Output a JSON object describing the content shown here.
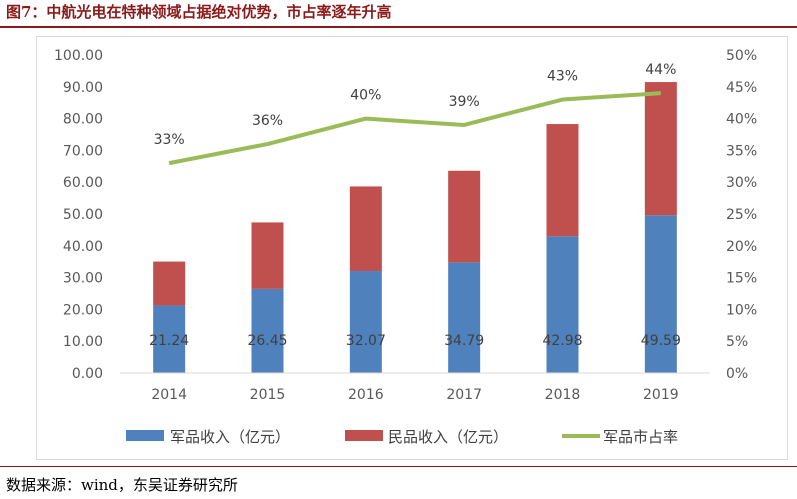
{
  "header": {
    "title": "图7：中航光电在特种领域占据绝对优势，市占率逐年升高"
  },
  "footer": {
    "source": "数据来源：wind，东吴证券研究所"
  },
  "chart_data": {
    "type": "bar",
    "stacked": true,
    "categories": [
      "2014",
      "2015",
      "2016",
      "2017",
      "2018",
      "2019"
    ],
    "series": [
      {
        "name": "军品收入（亿元）",
        "type": "bar",
        "axis": "left",
        "color": "#4F81BD",
        "values": [
          21.24,
          26.45,
          32.07,
          34.79,
          42.98,
          49.59
        ],
        "labels": [
          "21.24",
          "26.45",
          "32.07",
          "34.79",
          "42.98",
          "49.59"
        ]
      },
      {
        "name": "民品收入（亿元）",
        "type": "bar",
        "axis": "left",
        "color": "#C0504D",
        "values": [
          13.8,
          20.9,
          26.6,
          28.8,
          35.3,
          41.9
        ]
      },
      {
        "name": "军品市占率",
        "type": "line",
        "axis": "right",
        "color": "#9BBB59",
        "values": [
          33,
          36,
          40,
          39,
          43,
          44
        ],
        "labels": [
          "33%",
          "36%",
          "40%",
          "39%",
          "43%",
          "44%"
        ]
      }
    ],
    "y_left": {
      "min": 0,
      "max": 100,
      "step": 10,
      "ticks": [
        "0.00",
        "10.00",
        "20.00",
        "30.00",
        "40.00",
        "50.00",
        "60.00",
        "70.00",
        "80.00",
        "90.00",
        "100.00"
      ]
    },
    "y_right": {
      "min": 0,
      "max": 50,
      "step": 5,
      "ticks": [
        "0%",
        "5%",
        "10%",
        "15%",
        "20%",
        "25%",
        "30%",
        "35%",
        "40%",
        "45%",
        "50%"
      ]
    },
    "legend": "bottom",
    "grid": false
  }
}
